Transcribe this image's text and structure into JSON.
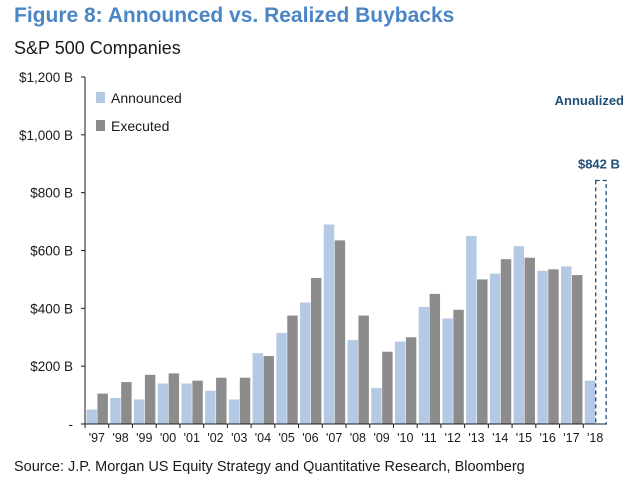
{
  "title": "Figure 8: Announced vs. Realized Buybacks",
  "subtitle": "S&P 500 Companies",
  "source": "Source: J.P. Morgan US Equity Strategy and Quantitative Research, Bloomberg",
  "colors": {
    "title": "#4a86c5",
    "announced": "#b4c9e3",
    "executed": "#8c8c8c",
    "annotation": "#1f4e79"
  },
  "chart_data": {
    "type": "bar",
    "categories": [
      "'97",
      "'98",
      "'99",
      "'00",
      "'01",
      "'02",
      "'03",
      "'04",
      "'05",
      "'06",
      "'07",
      "'08",
      "'09",
      "'10",
      "'11",
      "'12",
      "'13",
      "'14",
      "'15",
      "'16",
      "'17",
      "'18"
    ],
    "series": [
      {
        "name": "Announced",
        "values": [
          50,
          90,
          85,
          140,
          140,
          115,
          85,
          245,
          315,
          420,
          690,
          290,
          125,
          285,
          405,
          365,
          650,
          520,
          615,
          530,
          545,
          150
        ]
      },
      {
        "name": "Executed",
        "values": [
          105,
          145,
          170,
          175,
          150,
          160,
          160,
          235,
          375,
          505,
          635,
          375,
          250,
          300,
          450,
          395,
          500,
          570,
          575,
          535,
          515,
          null
        ]
      }
    ],
    "projection": {
      "category": "'18",
      "label": "$842 B",
      "value": 842,
      "note": "Annualized"
    },
    "yticks": [
      "-",
      "$200 B",
      "$400 B",
      "$600 B",
      "$800 B",
      "$1,000 B",
      "$1,200 B"
    ],
    "ylim": [
      0,
      1200
    ],
    "grid": false,
    "legend_position": "top-left"
  }
}
